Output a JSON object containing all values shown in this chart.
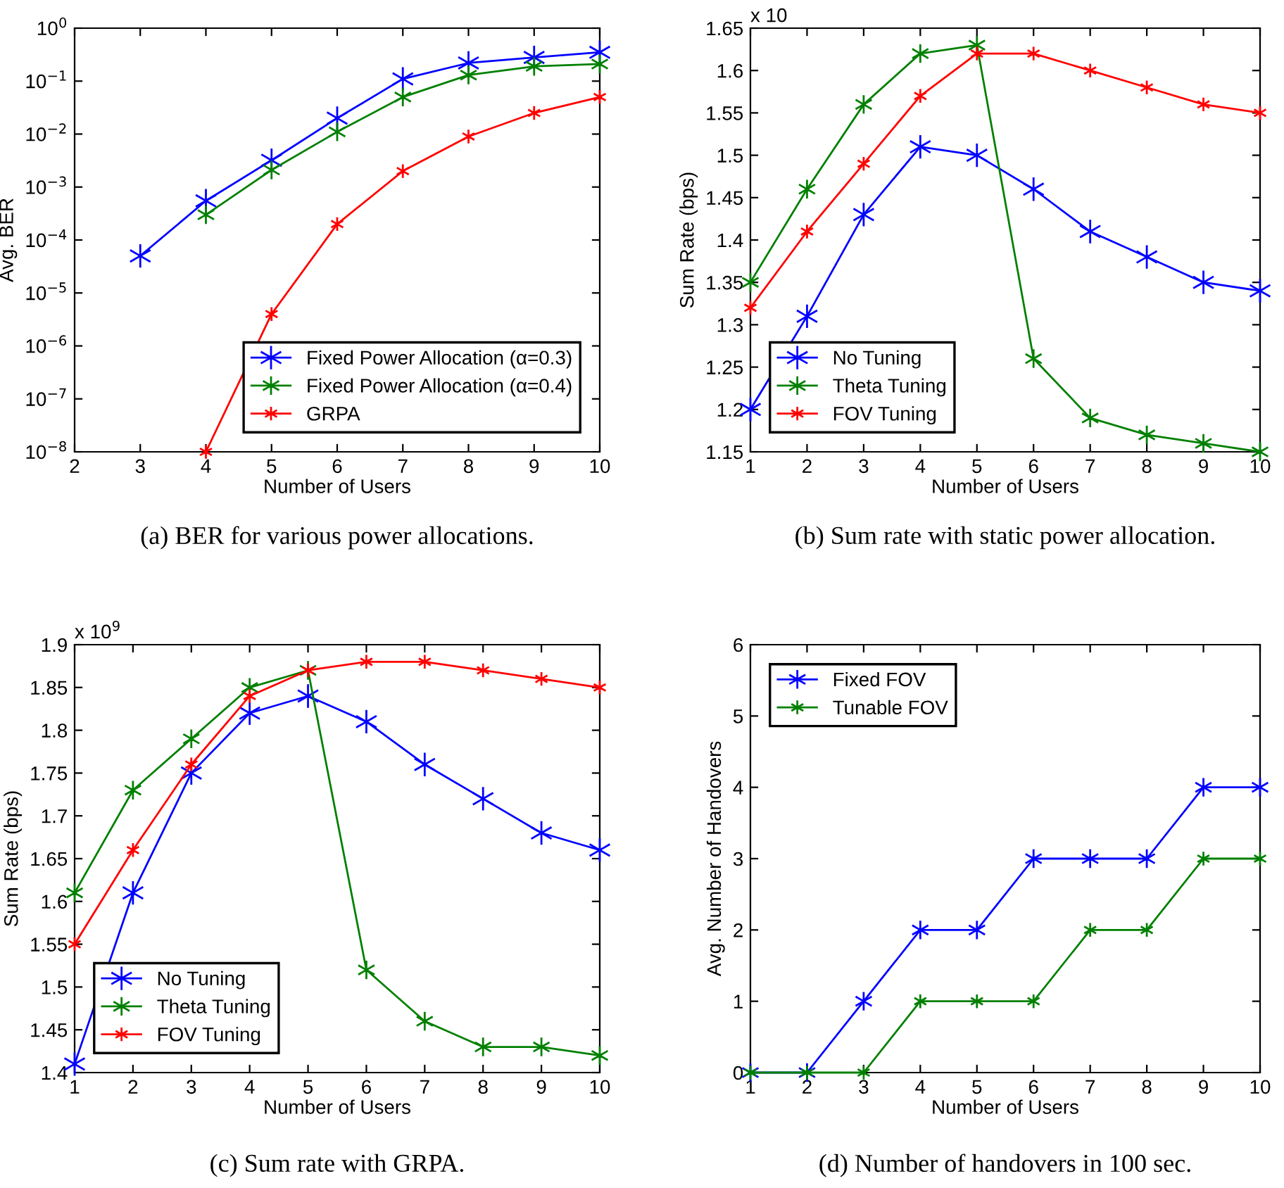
{
  "chart_data": [
    {
      "type": "line",
      "title": "(a) BER for various power allocations.",
      "xlabel": "Number of Users",
      "ylabel": "Avg. BER",
      "log": "y",
      "xlim": [
        2,
        10
      ],
      "xticks": [
        2,
        3,
        4,
        5,
        6,
        7,
        8,
        9,
        10
      ],
      "ylim": [
        1e-08,
        1
      ],
      "yticks": [
        {
          "value": 1e-08,
          "label": "10$^{−8}$"
        },
        {
          "value": 1e-07,
          "label": "10$^{−7}$"
        },
        {
          "value": 1e-06,
          "label": "10$^{−6}$"
        },
        {
          "value": 1e-05,
          "label": "10$^{−5}$"
        },
        {
          "value": 0.0001,
          "label": "10$^{−4}$"
        },
        {
          "value": 0.001,
          "label": "10$^{−3}$"
        },
        {
          "value": 0.01,
          "label": "10$^{−2}$"
        },
        {
          "value": 0.1,
          "label": "10$^{−1}$"
        },
        {
          "value": 1,
          "label": "10$^{0}$"
        }
      ],
      "grid": false,
      "legend": "bottom right",
      "marker": "cross",
      "line_style": "solid",
      "series": [
        {
          "name": "Fixed Power Allocation (α=0.3)",
          "color": "#0000ff",
          "x": [
            3,
            4,
            5,
            6,
            7,
            8,
            9,
            10
          ],
          "values": [
            5e-05,
            0.00055,
            0.0032,
            0.02,
            0.11,
            0.22,
            0.28,
            0.35
          ]
        },
        {
          "name": "Fixed Power Allocation (α=0.4)",
          "color": "#008000",
          "x": [
            4,
            5,
            6,
            7,
            8,
            9,
            10
          ],
          "values": [
            0.0003,
            0.0021,
            0.011,
            0.05,
            0.13,
            0.19,
            0.21
          ]
        },
        {
          "name": "GRPA",
          "color": "#ff0000",
          "x": [
            4,
            5,
            6,
            7,
            8,
            9,
            10
          ],
          "values": [
            1e-08,
            4e-06,
            0.0002,
            0.002,
            0.009,
            0.025,
            0.05
          ]
        }
      ]
    },
    {
      "type": "line",
      "title": "(b) Sum rate with static power allocation.",
      "xlabel": "Number of Users",
      "ylabel": "Sum Rate (bps)",
      "annotations": [
        "x 10"
      ],
      "xlim": [
        1,
        10
      ],
      "xticks": [
        1,
        2,
        3,
        4,
        5,
        6,
        7,
        8,
        9,
        10
      ],
      "ylim": [
        1.15,
        1.65
      ],
      "yticks": [
        1.15,
        1.2,
        1.25,
        1.3,
        1.35,
        1.4,
        1.45,
        1.5,
        1.55,
        1.6,
        1.65
      ],
      "grid": false,
      "legend": "bottom left",
      "marker": "cross",
      "line_style": "solid",
      "series": [
        {
          "name": "No Tuning",
          "color": "#0000ff",
          "x": [
            1,
            2,
            3,
            4,
            5,
            6,
            7,
            8,
            9,
            10
          ],
          "values": [
            1.2,
            1.31,
            1.43,
            1.51,
            1.5,
            1.46,
            1.41,
            1.38,
            1.35,
            1.34
          ]
        },
        {
          "name": "Theta Tuning",
          "color": "#008000",
          "x": [
            1,
            2,
            3,
            4,
            5,
            6,
            7,
            8,
            9,
            10
          ],
          "values": [
            1.35,
            1.46,
            1.56,
            1.62,
            1.63,
            1.26,
            1.19,
            1.17,
            1.16,
            1.15
          ]
        },
        {
          "name": "FOV Tuning",
          "color": "#ff0000",
          "x": [
            1,
            2,
            3,
            4,
            5,
            6,
            7,
            8,
            9,
            10
          ],
          "values": [
            1.32,
            1.41,
            1.49,
            1.57,
            1.62,
            1.62,
            1.6,
            1.58,
            1.56,
            1.55
          ]
        }
      ]
    },
    {
      "type": "line",
      "title": "(c) Sum rate with GRPA.",
      "xlabel": "Number of Users",
      "ylabel": "Sum Rate (bps)",
      "annotations": [
        "x 10$^{9}$"
      ],
      "xlim": [
        1,
        10
      ],
      "xticks": [
        1,
        2,
        3,
        4,
        5,
        6,
        7,
        8,
        9,
        10
      ],
      "ylim": [
        1.4,
        1.9
      ],
      "yticks": [
        1.4,
        1.45,
        1.5,
        1.55,
        1.6,
        1.65,
        1.7,
        1.75,
        1.8,
        1.85,
        1.9
      ],
      "grid": false,
      "legend": "bottom left",
      "marker": "cross",
      "line_style": "solid",
      "series": [
        {
          "name": "No Tuning",
          "color": "#0000ff",
          "x": [
            1,
            2,
            3,
            4,
            5,
            6,
            7,
            8,
            9,
            10
          ],
          "values": [
            1.41,
            1.61,
            1.75,
            1.82,
            1.84,
            1.81,
            1.76,
            1.72,
            1.68,
            1.66
          ]
        },
        {
          "name": "Theta Tuning",
          "color": "#008000",
          "x": [
            1,
            2,
            3,
            4,
            5,
            6,
            7,
            8,
            9,
            10
          ],
          "values": [
            1.61,
            1.73,
            1.79,
            1.85,
            1.87,
            1.52,
            1.46,
            1.43,
            1.43,
            1.42
          ]
        },
        {
          "name": "FOV Tuning",
          "color": "#ff0000",
          "x": [
            1,
            2,
            3,
            4,
            5,
            6,
            7,
            8,
            9,
            10
          ],
          "values": [
            1.55,
            1.66,
            1.76,
            1.84,
            1.87,
            1.88,
            1.88,
            1.87,
            1.86,
            1.85
          ]
        }
      ]
    },
    {
      "type": "line",
      "title": "(d) Number of handovers in 100 sec.",
      "xlabel": "Number of Users",
      "ylabel": "Avg. Number of Handovers",
      "xlim": [
        1,
        10
      ],
      "xticks": [
        1,
        2,
        3,
        4,
        5,
        6,
        7,
        8,
        9,
        10
      ],
      "ylim": [
        0,
        6
      ],
      "yticks": [
        0,
        1,
        2,
        3,
        4,
        5,
        6
      ],
      "grid": false,
      "legend": "top left",
      "marker": "cross",
      "line_style": "solid",
      "series": [
        {
          "name": "Fixed FOV",
          "color": "#0000ff",
          "x": [
            1,
            2,
            3,
            4,
            5,
            6,
            7,
            8,
            9,
            10
          ],
          "values": [
            0,
            0,
            1,
            2,
            2,
            3,
            3,
            3,
            4,
            4
          ]
        },
        {
          "name": "Tunable FOV",
          "color": "#008000",
          "x": [
            1,
            2,
            3,
            4,
            5,
            6,
            7,
            8,
            9,
            10
          ],
          "values": [
            0,
            0,
            0,
            1,
            1,
            1,
            2,
            2,
            3,
            3
          ]
        }
      ]
    }
  ]
}
